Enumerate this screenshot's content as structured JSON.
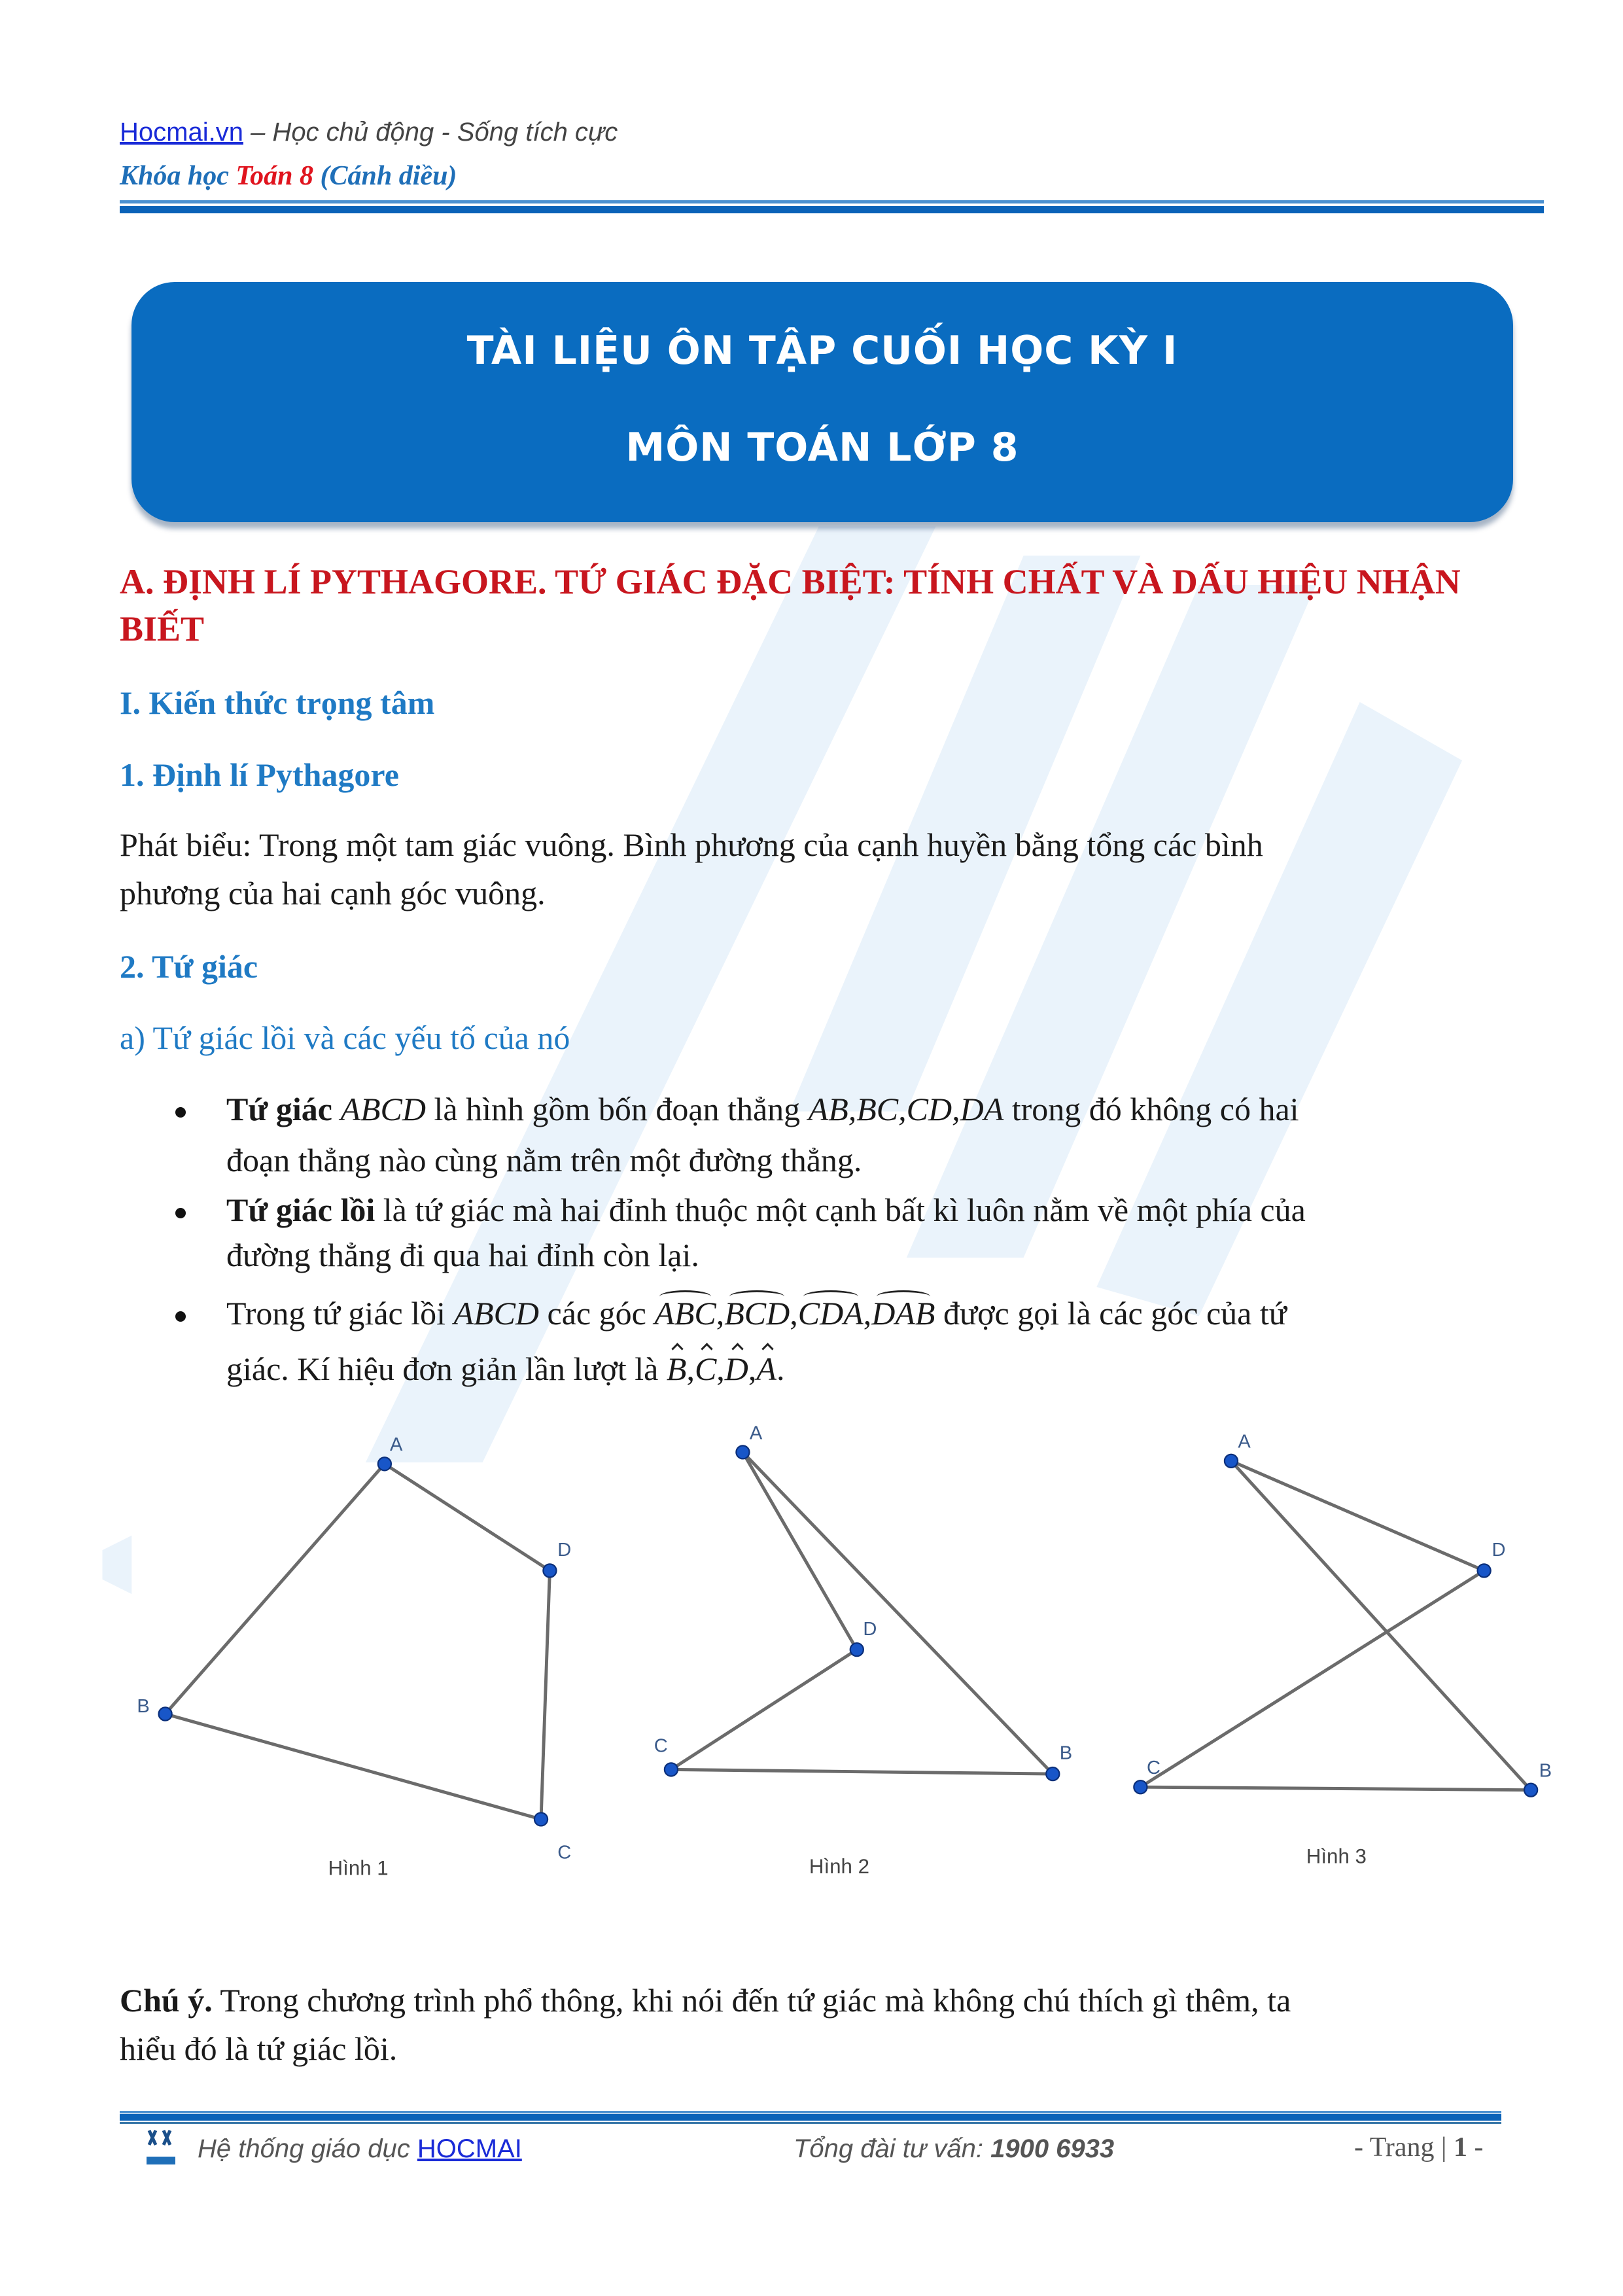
{
  "header": {
    "site_link": "Hocmai.vn",
    "slogan": " – Học chủ động - Sống tích cực",
    "course_prefix": "Khóa học ",
    "course_name": "Toán 8",
    "course_suffix": " (Cánh diều)"
  },
  "watermark": "HOCMAI",
  "banner": {
    "line1": "TÀI LIỆU ÔN TẬP CUỐI HỌC KỲ I",
    "line2": "MÔN TOÁN LỚP 8"
  },
  "section_a": {
    "title_line1": "A. ĐỊNH LÍ PYTHAGORE. TỨ GIÁC ĐẶC BIỆT: TÍNH CHẤT VÀ DẤU HIỆU NHẬN",
    "title_line2": "BIẾT"
  },
  "part1": {
    "title": "I. Kiến thức trọng tâm",
    "sub1": "1. Định lí Pythagore",
    "statement_line1": "Phát biểu: Trong một tam giác vuông. Bình phương của cạnh huyền bằng tổng các bình",
    "statement_line2": "phương của hai cạnh góc vuông.",
    "sub2": "2. Tứ giác",
    "sub2a": "a) Tứ giác lồi và các yếu tố của nó"
  },
  "bullets": [
    {
      "bold": "Tứ giác",
      "m1": "ABCD",
      "t1": " là hình gồm bốn đoạn thẳng ",
      "m2": "AB,BC,CD,DA",
      "t2": " trong đó không có hai",
      "line2": "đoạn thẳng nào cùng nằm trên một đường thẳng."
    },
    {
      "bold": "Tứ giác lồi",
      "t1": " là tứ giác mà hai đỉnh thuộc một cạnh bất kì luôn nằm về một phía của",
      "line2": "đường thẳng đi qua hai đỉnh còn lại."
    },
    {
      "t1": "Trong tứ giác lồi ",
      "m1": "ABCD",
      "t2": " các góc ",
      "angles": [
        "ABC",
        "BCD",
        "CDA",
        "DAB"
      ],
      "t3": " được gọi là các góc của tứ",
      "line2": "giác. Kí hiệu đơn giản lần lượt là ",
      "simple": [
        "B",
        "C",
        "D",
        "A"
      ]
    }
  ],
  "figures": [
    {
      "caption": "Hình 1",
      "labels": [
        "A",
        "B",
        "C",
        "D"
      ]
    },
    {
      "caption": "Hình 2",
      "labels": [
        "A",
        "B",
        "C",
        "D"
      ]
    },
    {
      "caption": "Hình 3",
      "labels": [
        "A",
        "B",
        "C",
        "D"
      ]
    }
  ],
  "note": {
    "bold": "Chú ý.",
    "line1": " Trong chương trình phổ thông, khi nói đến tứ giác mà không chú thích gì thêm, ta",
    "line2": "hiểu đó là tứ giác lồi."
  },
  "footer": {
    "system_text": "Hệ thống giáo dục ",
    "system_link": "HOCMAI",
    "hotline_label": "Tổng đài tư vấn: ",
    "hotline": "1900 6933",
    "page_prefix": "- Trang | ",
    "page_number": "1",
    "page_suffix": " -"
  },
  "colors": {
    "brand_blue": "#0a6cc0",
    "heading_red": "#c8161e",
    "heading_blue": "#1f7ac4",
    "point_blue": "#1856c8"
  }
}
